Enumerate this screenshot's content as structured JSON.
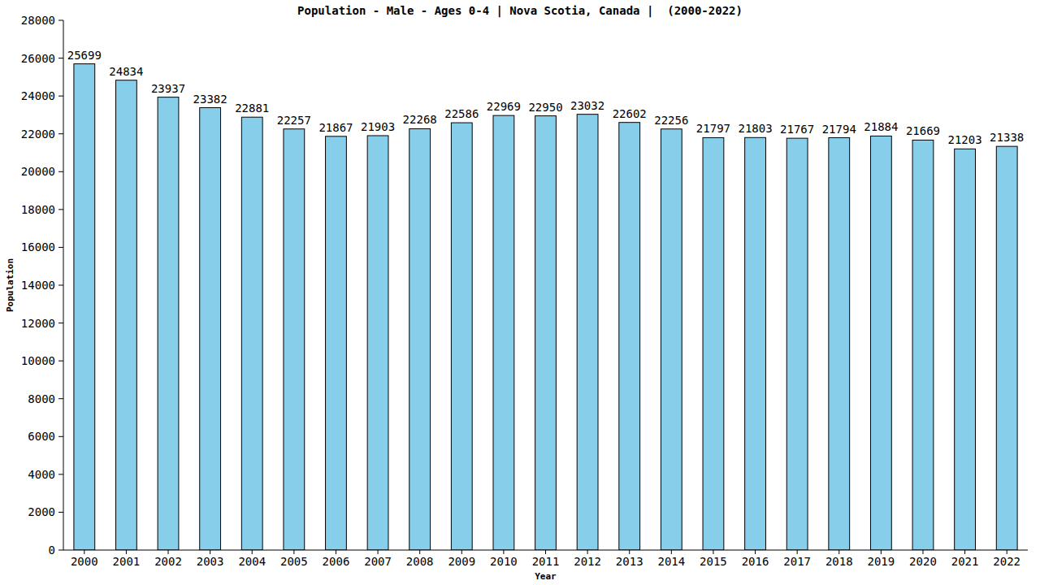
{
  "chart_data": {
    "type": "bar",
    "title": "Population - Male - Ages 0-4 | Nova Scotia, Canada |  (2000-2022)",
    "x_label": "Year",
    "y_label": "Population",
    "categories": [
      "2000",
      "2001",
      "2002",
      "2003",
      "2004",
      "2005",
      "2006",
      "2007",
      "2008",
      "2009",
      "2010",
      "2011",
      "2012",
      "2013",
      "2014",
      "2015",
      "2016",
      "2017",
      "2018",
      "2019",
      "2020",
      "2021",
      "2022"
    ],
    "values": [
      25699,
      24834,
      23937,
      23382,
      22881,
      22257,
      21867,
      21903,
      22268,
      22586,
      22969,
      22950,
      23032,
      22602,
      22256,
      21797,
      21803,
      21767,
      21794,
      21884,
      21669,
      21203,
      21338
    ],
    "color": "#87ceeb",
    "ylim": [
      0,
      28000
    ],
    "yticks": [
      0,
      2000,
      4000,
      6000,
      8000,
      10000,
      12000,
      14000,
      16000,
      18000,
      20000,
      22000,
      24000,
      26000,
      28000
    ],
    "grid": false,
    "data_labels": true
  }
}
